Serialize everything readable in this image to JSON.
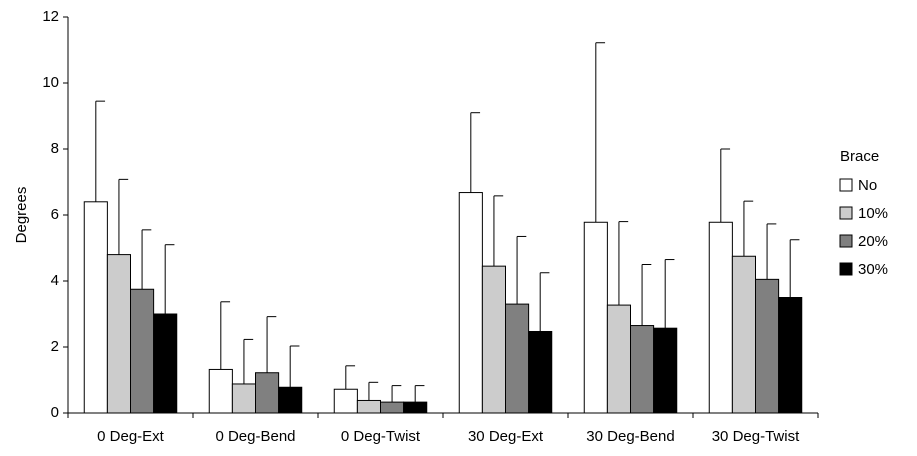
{
  "chart_data": {
    "type": "bar",
    "y_label": "Degrees",
    "legend_title": "Brace",
    "categories": [
      "0 Deg-Ext",
      "0 Deg-Bend",
      "0 Deg-Twist",
      "30 Deg-Ext",
      "30 Deg-Bend",
      "30 Deg-Twist"
    ],
    "series": [
      {
        "name": "No",
        "color": "#ffffff",
        "values": [
          6.4,
          1.32,
          0.72,
          6.68,
          5.78,
          5.78
        ],
        "errors": [
          3.05,
          2.05,
          0.71,
          2.42,
          5.44,
          2.22
        ]
      },
      {
        "name": "10%",
        "color": "#cccccc",
        "values": [
          4.8,
          0.88,
          0.38,
          4.45,
          3.27,
          4.75
        ],
        "errors": [
          2.28,
          1.35,
          0.55,
          2.13,
          2.53,
          1.67
        ]
      },
      {
        "name": "20%",
        "color": "#808080",
        "values": [
          3.75,
          1.22,
          0.33,
          3.3,
          2.65,
          4.05
        ],
        "errors": [
          1.8,
          1.7,
          0.5,
          2.05,
          1.85,
          1.68
        ]
      },
      {
        "name": "30%",
        "color": "#000000",
        "values": [
          3.0,
          0.78,
          0.33,
          2.47,
          2.57,
          3.5
        ],
        "errors": [
          2.1,
          1.25,
          0.5,
          1.78,
          2.08,
          1.75
        ]
      }
    ],
    "ylim": [
      0,
      12
    ],
    "yticks": [
      0,
      2,
      4,
      6,
      8,
      10,
      12
    ],
    "legend": "right"
  }
}
